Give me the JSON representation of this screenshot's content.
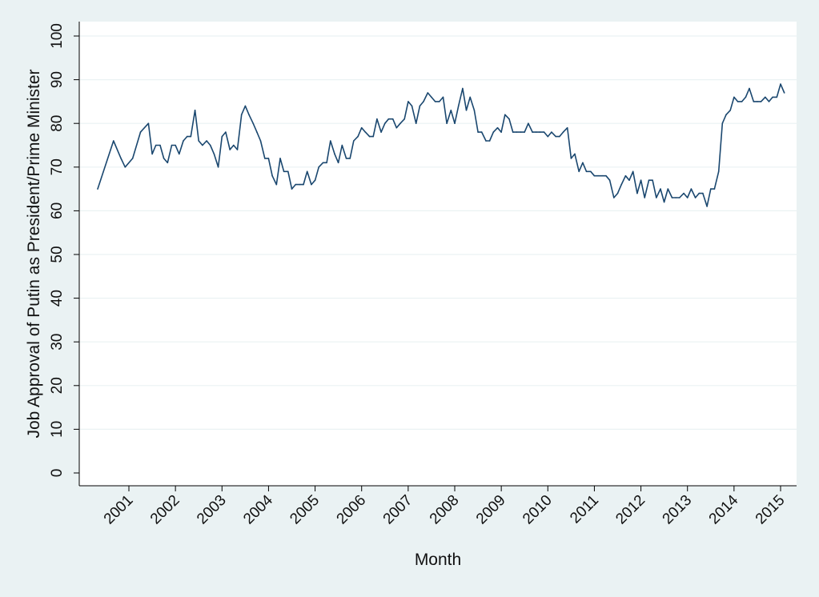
{
  "chart_data": {
    "type": "line",
    "title": "",
    "xlabel": "Month",
    "ylabel": "Job Approval of Putin as President/Prime Minister",
    "xlim": [
      2000.2,
      2015.3
    ],
    "ylim": [
      0,
      100
    ],
    "y_ticks": [
      0,
      10,
      20,
      30,
      40,
      50,
      60,
      70,
      80,
      90,
      100
    ],
    "x_ticks": [
      2001,
      2002,
      2003,
      2004,
      2005,
      2006,
      2007,
      2008,
      2009,
      2010,
      2011,
      2012,
      2013,
      2014,
      2015
    ],
    "grid": "horizontal",
    "legend": "none",
    "colors": {
      "background": "#eaf2f3",
      "plot": "#ffffff",
      "line": "#1a476f",
      "grid": "#eaf2f3"
    },
    "series": [
      {
        "x": [
          2000.33,
          2000.67,
          2000.83,
          2000.92,
          2001.08,
          2001.25,
          2001.42,
          2001.5,
          2001.58,
          2001.67,
          2001.75,
          2001.83,
          2001.92,
          2002.0,
          2002.08,
          2002.17,
          2002.25,
          2002.33,
          2002.42,
          2002.5,
          2002.58,
          2002.67,
          2002.75,
          2002.83,
          2002.92,
          2003.0,
          2003.08,
          2003.17,
          2003.25,
          2003.33,
          2003.42,
          2003.5,
          2003.58,
          2003.67,
          2003.75,
          2003.83,
          2003.92,
          2004.0,
          2004.08,
          2004.17,
          2004.25,
          2004.33,
          2004.42,
          2004.5,
          2004.58,
          2004.67,
          2004.75,
          2004.83,
          2004.92,
          2005.0,
          2005.08,
          2005.17,
          2005.25,
          2005.33,
          2005.42,
          2005.5,
          2005.58,
          2005.67,
          2005.75,
          2005.83,
          2005.92,
          2006.0,
          2006.08,
          2006.17,
          2006.25,
          2006.33,
          2006.42,
          2006.5,
          2006.58,
          2006.67,
          2006.75,
          2006.83,
          2006.92,
          2007.0,
          2007.08,
          2007.17,
          2007.25,
          2007.33,
          2007.42,
          2007.5,
          2007.58,
          2007.67,
          2007.75,
          2007.83,
          2007.92,
          2008.0,
          2008.08,
          2008.17,
          2008.25,
          2008.33,
          2008.42,
          2008.5,
          2008.58,
          2008.67,
          2008.75,
          2008.83,
          2008.92,
          2009.0,
          2009.08,
          2009.17,
          2009.25,
          2009.33,
          2009.42,
          2009.5,
          2009.58,
          2009.67,
          2009.75,
          2009.83,
          2009.92,
          2010.0,
          2010.08,
          2010.17,
          2010.25,
          2010.33,
          2010.42,
          2010.5,
          2010.58,
          2010.67,
          2010.75,
          2010.83,
          2010.92,
          2011.0,
          2011.08,
          2011.17,
          2011.25,
          2011.33,
          2011.42,
          2011.5,
          2011.58,
          2011.67,
          2011.75,
          2011.83,
          2011.92,
          2012.0,
          2012.08,
          2012.17,
          2012.25,
          2012.33,
          2012.42,
          2012.5,
          2012.58,
          2012.67,
          2012.75,
          2012.83,
          2012.92,
          2013.0,
          2013.08,
          2013.17,
          2013.25,
          2013.33,
          2013.42,
          2013.5,
          2013.58,
          2013.67,
          2013.75,
          2013.83,
          2013.92,
          2014.0,
          2014.08,
          2014.17,
          2014.25,
          2014.33,
          2014.42,
          2014.5,
          2014.58,
          2014.67,
          2014.75,
          2014.83,
          2014.92,
          2015.0,
          2015.08
        ],
        "values": [
          65,
          76,
          72,
          70,
          72,
          78,
          80,
          73,
          75,
          75,
          72,
          71,
          75,
          75,
          73,
          76,
          77,
          77,
          83,
          76,
          75,
          76,
          75,
          73,
          70,
          77,
          78,
          74,
          75,
          74,
          82,
          84,
          82,
          80,
          78,
          76,
          72,
          72,
          68,
          66,
          72,
          69,
          69,
          65,
          66,
          66,
          66,
          69,
          66,
          67,
          70,
          71,
          71,
          76,
          73,
          71,
          75,
          72,
          72,
          76,
          77,
          79,
          78,
          77,
          77,
          81,
          78,
          80,
          81,
          81,
          79,
          80,
          81,
          85,
          84,
          80,
          84,
          85,
          87,
          86,
          85,
          85,
          86,
          80,
          83,
          80,
          84,
          88,
          83,
          86,
          83,
          78,
          78,
          76,
          76,
          78,
          79,
          78,
          82,
          81,
          78,
          78,
          78,
          78,
          80,
          78,
          78,
          78,
          78,
          77,
          78,
          77,
          77,
          78,
          79,
          72,
          73,
          69,
          71,
          69,
          69,
          68,
          68,
          68,
          68,
          67,
          63,
          64,
          66,
          68,
          67,
          69,
          64,
          67,
          63,
          67,
          67,
          63,
          65,
          62,
          65,
          63,
          63,
          63,
          64,
          63,
          65,
          63,
          64,
          64,
          61,
          65,
          65,
          69,
          80,
          82,
          83,
          86,
          85,
          85,
          86,
          88,
          85,
          85,
          85,
          86,
          85,
          86,
          86,
          89,
          87
        ]
      }
    ]
  }
}
